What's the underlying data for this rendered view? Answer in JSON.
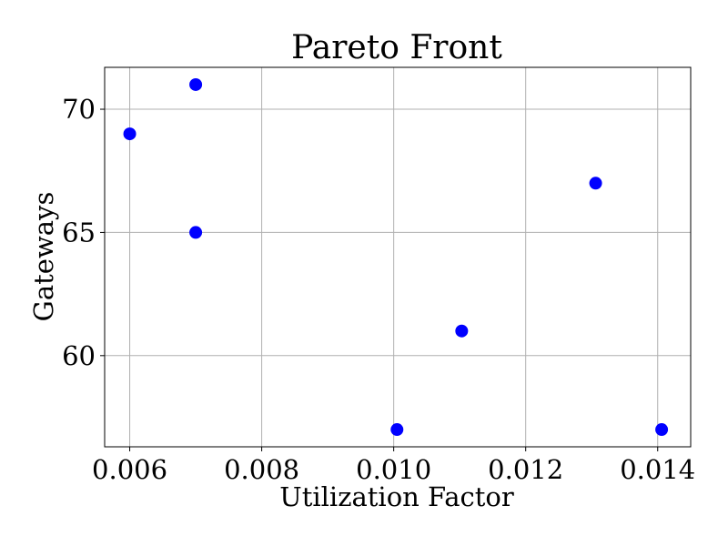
{
  "chart_data": {
    "type": "scatter",
    "title": "Pareto Front",
    "xlabel": "Utilization Factor",
    "ylabel": "Gateways",
    "xlim": [
      0.00562,
      0.0145
    ],
    "ylim": [
      56.3,
      71.7
    ],
    "xticks": [
      0.006,
      0.008,
      0.01,
      0.012,
      0.014
    ],
    "xtick_labels": [
      "0.006",
      "0.008",
      "0.010",
      "0.012",
      "0.014"
    ],
    "yticks": [
      60,
      65,
      70
    ],
    "ytick_labels": [
      "60",
      "65",
      "70"
    ],
    "grid": true,
    "marker_color": "#0000ff",
    "points": [
      {
        "x": 0.006,
        "y": 69
      },
      {
        "x": 0.007,
        "y": 71
      },
      {
        "x": 0.007,
        "y": 65
      },
      {
        "x": 0.01005,
        "y": 57
      },
      {
        "x": 0.01103,
        "y": 61
      },
      {
        "x": 0.01306,
        "y": 67
      },
      {
        "x": 0.01406,
        "y": 57
      }
    ]
  }
}
